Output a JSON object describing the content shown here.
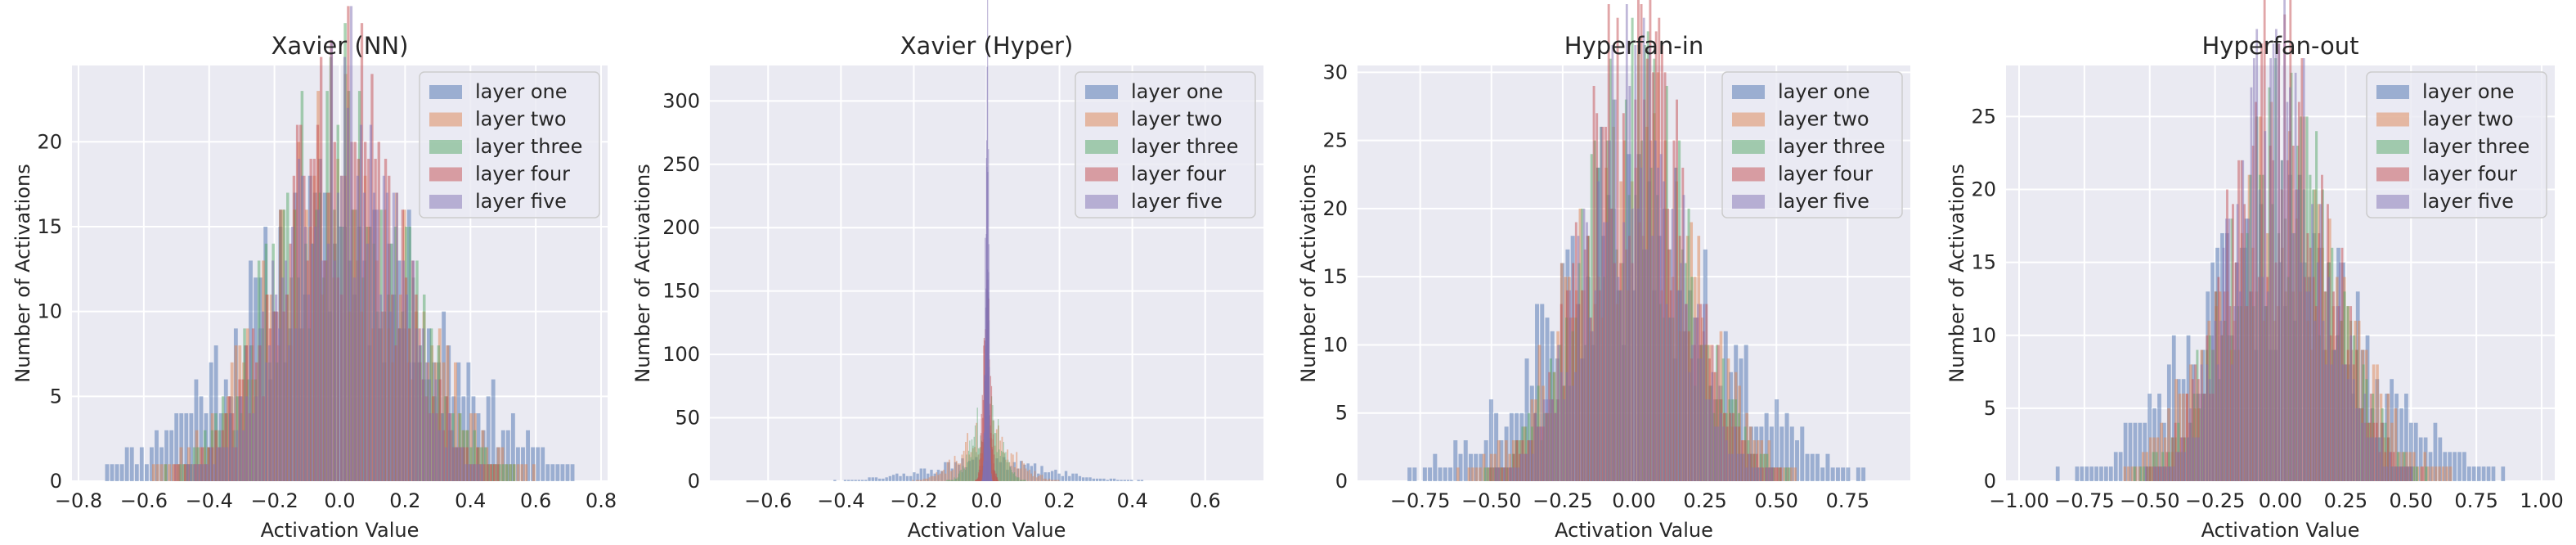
{
  "legend_labels": [
    "layer one",
    "layer two",
    "layer three",
    "layer four",
    "layer five"
  ],
  "series_colors": [
    "#4c72b0",
    "#dd8452",
    "#55a868",
    "#c44e52",
    "#8172b3"
  ],
  "bar_opacity": 0.5,
  "chart_data": [
    {
      "type": "bar",
      "title": "Xavier (NN)",
      "xlabel": "Activation Value",
      "ylabel": "Number of Activations",
      "xlim": [
        -0.82,
        0.82
      ],
      "ylim": [
        0,
        24.5
      ],
      "xticks": [
        -0.8,
        -0.6,
        -0.4,
        -0.2,
        0.0,
        0.2,
        0.4,
        0.6,
        0.8
      ],
      "xtick_labels": [
        "−0.8",
        "−0.6",
        "−0.4",
        "−0.2",
        "0.0",
        "0.2",
        "0.4",
        "0.6",
        "0.8"
      ],
      "yticks": [
        0,
        5,
        10,
        15,
        20
      ],
      "ytick_labels": [
        "0",
        "5",
        "10",
        "15",
        "20"
      ],
      "legend_position": "top-right",
      "grid": true,
      "series": [
        {
          "name": "layer one",
          "spread": 0.72,
          "sigma": 0.3,
          "peak": 14,
          "bins": 95,
          "seed": 11
        },
        {
          "name": "layer two",
          "spread": 0.6,
          "sigma": 0.22,
          "peak": 17,
          "bins": 100,
          "seed": 23
        },
        {
          "name": "layer three",
          "spread": 0.55,
          "sigma": 0.2,
          "peak": 19,
          "bins": 100,
          "seed": 37
        },
        {
          "name": "layer four",
          "spread": 0.52,
          "sigma": 0.18,
          "peak": 20,
          "bins": 100,
          "seed": 41
        },
        {
          "name": "layer five",
          "spread": 0.5,
          "sigma": 0.17,
          "peak": 21,
          "bins": 100,
          "seed": 53
        }
      ]
    },
    {
      "type": "bar",
      "title": "Xavier (Hyper)",
      "xlabel": "Activation Value",
      "ylabel": "Number of Activations",
      "xlim": [
        -0.76,
        0.76
      ],
      "ylim": [
        0,
        328
      ],
      "xticks": [
        -0.6,
        -0.4,
        -0.2,
        0.0,
        0.2,
        0.4,
        0.6
      ],
      "xtick_labels": [
        "−0.6",
        "−0.4",
        "−0.2",
        "0.0",
        "0.2",
        "0.4",
        "0.6"
      ],
      "yticks": [
        0,
        50,
        100,
        150,
        200,
        250,
        300
      ],
      "ytick_labels": [
        "0",
        "50",
        "100",
        "150",
        "200",
        "250",
        "300"
      ],
      "legend_position": "top-right",
      "grid": true,
      "series": [
        {
          "name": "layer one",
          "spread": 0.45,
          "sigma": 0.16,
          "peak": 14,
          "bins": 95,
          "seed": 61
        },
        {
          "name": "layer two",
          "spread": 0.25,
          "sigma": 0.07,
          "peak": 35,
          "bins": 100,
          "seed": 71
        },
        {
          "name": "layer three",
          "spread": 0.15,
          "sigma": 0.035,
          "peak": 55,
          "bins": 100,
          "seed": 83
        },
        {
          "name": "layer four",
          "spread": 0.06,
          "sigma": 0.01,
          "peak": 120,
          "bins": 100,
          "seed": 97
        },
        {
          "name": "layer five",
          "spread": 0.03,
          "sigma": 0.004,
          "peak": 310,
          "bins": 100,
          "seed": 101
        }
      ]
    },
    {
      "type": "bar",
      "title": "Hyperfan-in",
      "xlabel": "Activation Value",
      "ylabel": "Number of Activations",
      "xlim": [
        -0.97,
        0.97
      ],
      "ylim": [
        0,
        30.5
      ],
      "xticks": [
        -0.75,
        -0.5,
        -0.25,
        0.0,
        0.25,
        0.5,
        0.75
      ],
      "xtick_labels": [
        "−0.75",
        "−0.50",
        "−0.25",
        "0.00",
        "0.25",
        "0.50",
        "0.75"
      ],
      "yticks": [
        0,
        5,
        10,
        15,
        20,
        25,
        30
      ],
      "ytick_labels": [
        "0",
        "5",
        "10",
        "15",
        "20",
        "25",
        "30"
      ],
      "legend_position": "top-right",
      "grid": true,
      "series": [
        {
          "name": "layer one",
          "spread": 0.85,
          "sigma": 0.3,
          "peak": 17,
          "bins": 95,
          "seed": 113
        },
        {
          "name": "layer two",
          "spread": 0.65,
          "sigma": 0.22,
          "peak": 22,
          "bins": 100,
          "seed": 127
        },
        {
          "name": "layer three",
          "spread": 0.55,
          "sigma": 0.19,
          "peak": 25,
          "bins": 100,
          "seed": 131
        },
        {
          "name": "layer four",
          "spread": 0.52,
          "sigma": 0.18,
          "peak": 28,
          "bins": 100,
          "seed": 137
        },
        {
          "name": "layer five",
          "spread": 0.5,
          "sigma": 0.17,
          "peak": 25,
          "bins": 100,
          "seed": 149
        }
      ]
    },
    {
      "type": "bar",
      "title": "Hyperfan-out",
      "xlabel": "Activation Value",
      "ylabel": "Number of Activations",
      "xlim": [
        -1.05,
        1.05
      ],
      "ylim": [
        0,
        28.5
      ],
      "xticks": [
        -1.0,
        -0.75,
        -0.5,
        -0.25,
        0.0,
        0.25,
        0.5,
        0.75,
        1.0
      ],
      "xtick_labels": [
        "−1.00",
        "−0.75",
        "−0.50",
        "−0.25",
        "0.00",
        "0.25",
        "0.50",
        "0.75",
        "1.00"
      ],
      "yticks": [
        0,
        5,
        10,
        15,
        20,
        25
      ],
      "ytick_labels": [
        "0",
        "5",
        "10",
        "15",
        "20",
        "25"
      ],
      "legend_position": "top-right",
      "grid": true,
      "series": [
        {
          "name": "layer one",
          "spread": 0.88,
          "sigma": 0.32,
          "peak": 15,
          "bins": 95,
          "seed": 151
        },
        {
          "name": "layer two",
          "spread": 0.7,
          "sigma": 0.24,
          "peak": 19,
          "bins": 100,
          "seed": 157
        },
        {
          "name": "layer three",
          "spread": 0.6,
          "sigma": 0.2,
          "peak": 22,
          "bins": 100,
          "seed": 163
        },
        {
          "name": "layer four",
          "spread": 0.55,
          "sigma": 0.19,
          "peak": 26,
          "bins": 100,
          "seed": 167
        },
        {
          "name": "layer five",
          "spread": 0.53,
          "sigma": 0.18,
          "peak": 24,
          "bins": 100,
          "seed": 173
        }
      ]
    }
  ]
}
